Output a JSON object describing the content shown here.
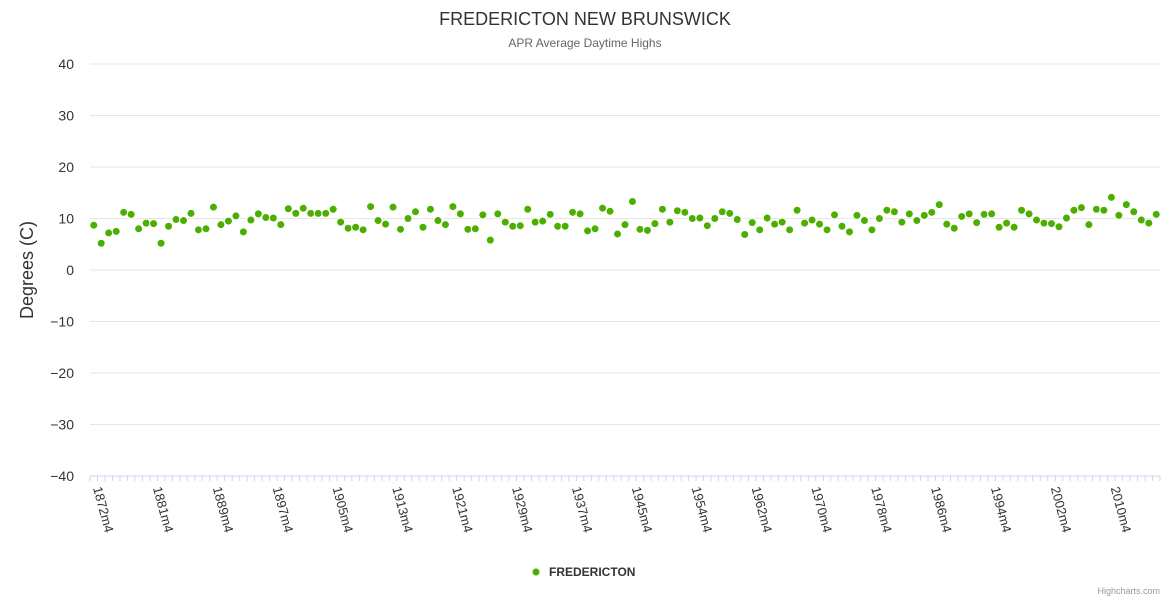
{
  "chart_data": {
    "type": "scatter",
    "title": "FREDERICTON NEW BRUNSWICK",
    "subtitle": "APR Average Daytime Highs",
    "xlabel": "",
    "ylabel": "Degrees (C)",
    "ylim": [
      -40,
      40
    ],
    "yticks": [
      "40",
      "30",
      "20",
      "10",
      "0",
      "−10",
      "−20",
      "−30",
      "−40"
    ],
    "grid": true,
    "legend_position": "bottom-center",
    "x_tick_labels": [
      {
        "index": 0,
        "label": "1872m4"
      },
      {
        "index": 8,
        "label": "1881m4"
      },
      {
        "index": 16,
        "label": "1889m4"
      },
      {
        "index": 24,
        "label": "1897m4"
      },
      {
        "index": 32,
        "label": "1905m4"
      },
      {
        "index": 40,
        "label": "1913m4"
      },
      {
        "index": 48,
        "label": "1921m4"
      },
      {
        "index": 56,
        "label": "1929m4"
      },
      {
        "index": 64,
        "label": "1937m4"
      },
      {
        "index": 72,
        "label": "1945m4"
      },
      {
        "index": 80,
        "label": "1954m4"
      },
      {
        "index": 88,
        "label": "1962m4"
      },
      {
        "index": 96,
        "label": "1970m4"
      },
      {
        "index": 104,
        "label": "1978m4"
      },
      {
        "index": 112,
        "label": "1986m4"
      },
      {
        "index": 120,
        "label": "1994m4"
      },
      {
        "index": 128,
        "label": "2002m4"
      },
      {
        "index": 136,
        "label": "2010m4"
      }
    ],
    "series": [
      {
        "name": "FREDERICTON",
        "color": "#4caf00",
        "values": [
          8.7,
          5.2,
          7.2,
          7.5,
          11.2,
          10.8,
          8.0,
          9.1,
          9.0,
          5.2,
          8.5,
          9.8,
          9.6,
          11.0,
          7.8,
          8.0,
          12.2,
          8.8,
          9.5,
          10.5,
          7.4,
          9.7,
          10.9,
          10.2,
          10.1,
          8.8,
          11.9,
          11.0,
          12.0,
          11.0,
          11.0,
          11.0,
          11.8,
          9.3,
          8.1,
          8.3,
          7.8,
          12.3,
          9.6,
          8.9,
          12.2,
          7.9,
          10.0,
          11.3,
          8.3,
          11.8,
          9.6,
          8.8,
          12.3,
          10.9,
          7.9,
          8.0,
          10.7,
          5.8,
          10.9,
          9.3,
          8.5,
          8.6,
          11.8,
          9.3,
          9.5,
          10.8,
          8.5,
          8.5,
          11.2,
          10.9,
          7.6,
          8.0,
          12.0,
          11.4,
          7.0,
          8.8,
          13.3,
          7.9,
          7.7,
          9.0,
          11.8,
          9.3,
          11.5,
          11.2,
          10.0,
          10.1,
          8.6,
          10.0,
          11.3,
          11.0,
          9.8,
          6.9,
          9.2,
          7.8,
          10.1,
          8.9,
          9.3,
          7.8,
          11.6,
          9.1,
          9.7,
          8.9,
          7.8,
          10.7,
          8.5,
          7.4,
          10.6,
          9.6,
          7.8,
          10.0,
          11.6,
          11.3,
          9.3,
          10.9,
          9.6,
          10.6,
          11.2,
          12.7,
          8.9,
          8.1,
          10.4,
          10.9,
          9.2,
          10.8,
          10.9,
          8.3,
          9.1,
          8.3,
          11.6,
          10.9,
          9.7,
          9.1,
          9.0,
          8.4,
          10.1,
          11.6,
          12.1,
          8.8,
          11.8,
          11.6,
          14.1,
          10.6,
          12.7,
          11.3,
          9.7,
          9.1,
          10.8
        ]
      }
    ]
  },
  "legend": {
    "label": "FREDERICTON"
  },
  "credits": "Highcharts.com"
}
